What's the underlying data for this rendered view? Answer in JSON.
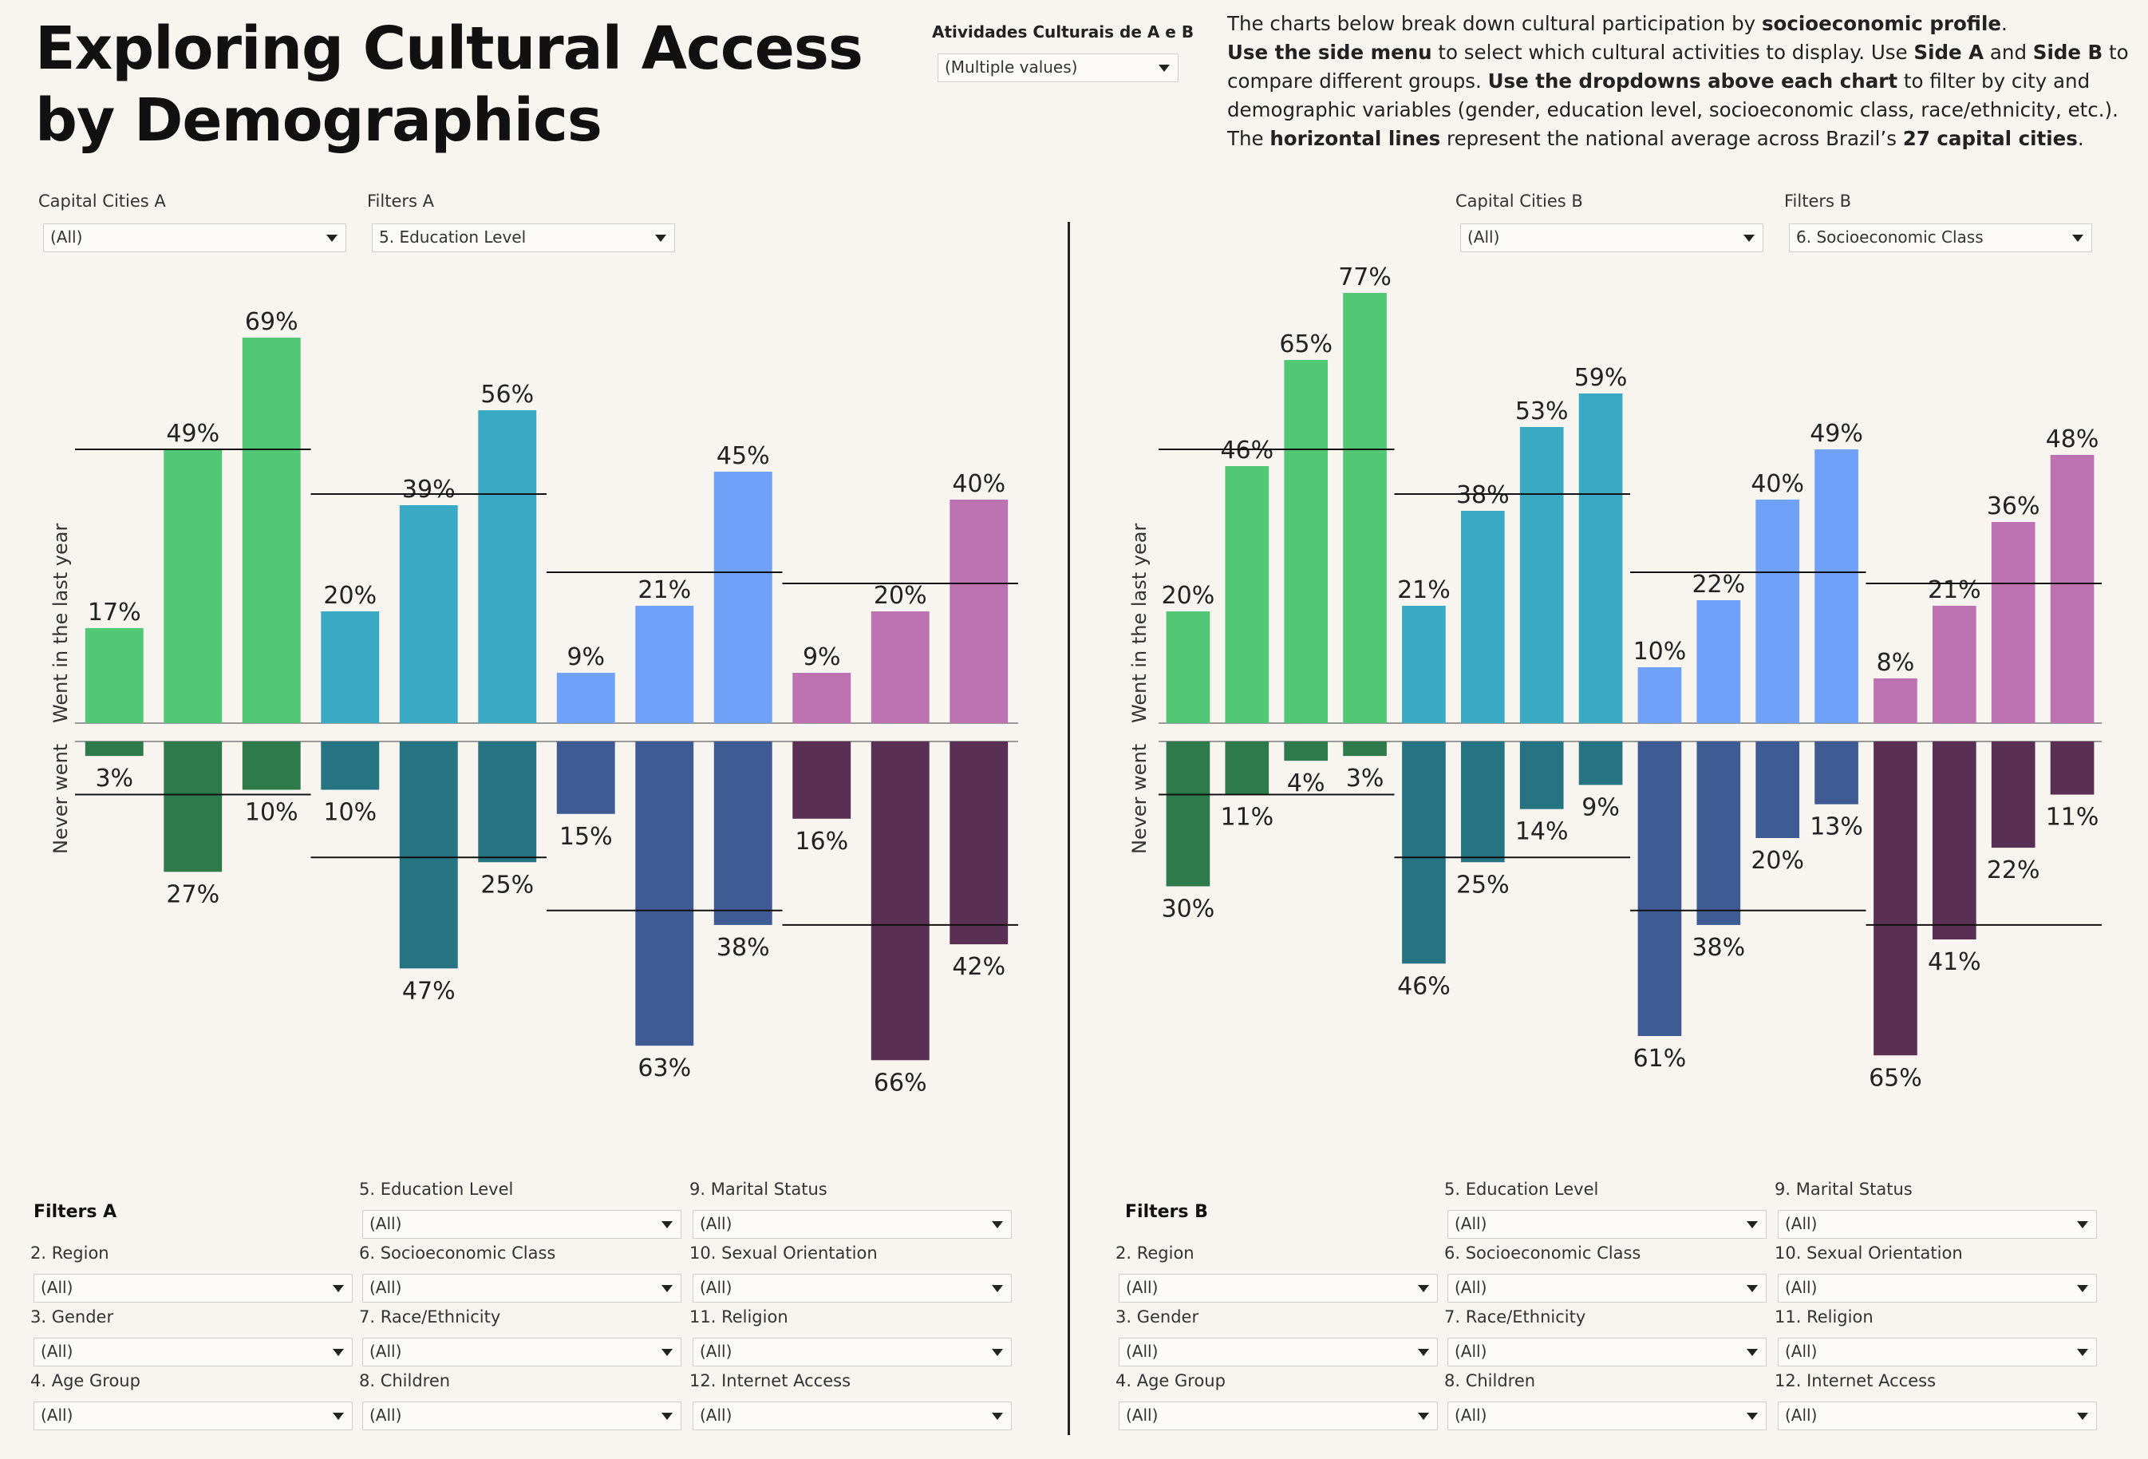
{
  "header": {
    "title_line1": "Exploring Cultural Access",
    "title_line2": "by Demographics",
    "activities_label": "Atividades Culturais de A e B",
    "activities_value": "(Multiple values)",
    "desc": {
      "p1": "The charts below break down cultural participation by ",
      "b1": "socioeconomic profile",
      "p2": ".",
      "b2": "Use the side menu",
      "p3": " to select which cultural activities to display. Use ",
      "b3": "Side A",
      "p4": " and ",
      "b4": "Side B",
      "p5": " to compare different groups. ",
      "b5": "Use the dropdowns above each chart",
      "p6": " to filter by city and demographic variables (gender, education level, socioeconomic class, race/ethnicity, etc.). The ",
      "b6": "horizontal lines",
      "p7": " represent the national average across Brazil’s ",
      "b7": "27 capital cities",
      "p8": "."
    }
  },
  "side_a": {
    "cities_label": "Capital Cities A",
    "cities_value": "(All)",
    "filters_label": "Filters A",
    "filters_value": "5. Education Level",
    "axis_top": "Went in the last year",
    "axis_bottom": "Never went"
  },
  "side_b": {
    "cities_label": "Capital Cities B",
    "cities_value": "(All)",
    "filters_label": "Filters B",
    "filters_value": "6. Socioeconomic Class",
    "axis_top": "Went in the last year",
    "axis_bottom": "Never went"
  },
  "bottom_filters_a": {
    "heading": "Filters A",
    "items": [
      {
        "label": "2. Region",
        "value": "(All)"
      },
      {
        "label": "3. Gender",
        "value": "(All)"
      },
      {
        "label": "4. Age Group",
        "value": "(All)"
      },
      {
        "label": "5. Education Level",
        "value": "(All)"
      },
      {
        "label": "6. Socioeconomic Class",
        "value": "(All)"
      },
      {
        "label": "7. Race/Ethnicity",
        "value": "(All)"
      },
      {
        "label": "8. Children",
        "value": "(All)"
      },
      {
        "label": "9. Marital Status",
        "value": "(All)"
      },
      {
        "label": "10. Sexual Orientation",
        "value": "(All)"
      },
      {
        "label": "11. Religion",
        "value": "(All)"
      },
      {
        "label": "12. Internet Access",
        "value": "(All)"
      }
    ]
  },
  "bottom_filters_b": {
    "heading": "Filters B",
    "items": [
      {
        "label": "2. Region",
        "value": "(All)"
      },
      {
        "label": "3. Gender",
        "value": "(All)"
      },
      {
        "label": "4. Age Group",
        "value": "(All)"
      },
      {
        "label": "5. Education Level",
        "value": "(All)"
      },
      {
        "label": "6. Socioeconomic Class",
        "value": "(All)"
      },
      {
        "label": "7. Race/Ethnicity",
        "value": "(All)"
      },
      {
        "label": "8. Children",
        "value": "(All)"
      },
      {
        "label": "9. Marital Status",
        "value": "(All)"
      },
      {
        "label": "10. Sexual Orientation",
        "value": "(All)"
      },
      {
        "label": "11. Religion",
        "value": "(All)"
      },
      {
        "label": "12. Internet Access",
        "value": "(All)"
      }
    ]
  },
  "chart_data": [
    {
      "type": "bar",
      "side": "A",
      "breakdown": "5. Education Level",
      "ylabel_top": "Went in the last year",
      "ylabel_bottom": "Never went",
      "groups": [
        {
          "color_top": "#52c776",
          "color_bottom": "#2e7a4a",
          "went": [
            17,
            49,
            69
          ],
          "never": [
            3,
            27,
            10
          ],
          "avg_went": 49,
          "avg_never": 11
        },
        {
          "color_top": "#3aa9c4",
          "color_bottom": "#267382",
          "went": [
            20,
            39,
            56
          ],
          "never": [
            10,
            47,
            25
          ],
          "avg_went": 41,
          "avg_never": 24
        },
        {
          "color_top": "#6ea1f7",
          "color_bottom": "#3e5b93",
          "went": [
            9,
            21,
            45
          ],
          "never": [
            15,
            63,
            38
          ],
          "avg_went": 27,
          "avg_never": 35
        },
        {
          "color_top": "#bd72b2",
          "color_bottom": "#5a2f54",
          "went": [
            9,
            20,
            40
          ],
          "never": [
            16,
            66,
            42
          ],
          "avg_went": 25,
          "avg_never": 38
        }
      ]
    },
    {
      "type": "bar",
      "side": "B",
      "breakdown": "6. Socioeconomic Class",
      "ylabel_top": "Went in the last year",
      "ylabel_bottom": "Never went",
      "groups": [
        {
          "color_top": "#52c776",
          "color_bottom": "#2e7a4a",
          "went": [
            20,
            46,
            65,
            77
          ],
          "never": [
            30,
            11,
            4,
            3
          ],
          "avg_went": 49,
          "avg_never": 11
        },
        {
          "color_top": "#3aa9c4",
          "color_bottom": "#267382",
          "went": [
            21,
            38,
            53,
            59
          ],
          "never": [
            46,
            25,
            14,
            9
          ],
          "avg_went": 41,
          "avg_never": 24
        },
        {
          "color_top": "#6ea1f7",
          "color_bottom": "#3e5b93",
          "went": [
            10,
            22,
            40,
            49
          ],
          "never": [
            61,
            38,
            20,
            13
          ],
          "avg_went": 27,
          "avg_never": 35
        },
        {
          "color_top": "#bd72b2",
          "color_bottom": "#5a2f54",
          "went": [
            8,
            21,
            36,
            48
          ],
          "never": [
            65,
            41,
            22,
            11
          ],
          "avg_went": 25,
          "avg_never": 38
        }
      ]
    }
  ]
}
